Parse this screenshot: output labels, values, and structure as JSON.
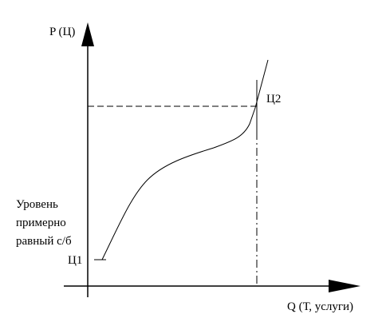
{
  "axes": {
    "y_label": "P (Ц)",
    "x_label": "Q (Т, услуги)"
  },
  "points": {
    "upper": "Ц2",
    "lower": "Ц1"
  },
  "note": {
    "lines": [
      "Уровень",
      "примерно",
      "равный с/б"
    ]
  }
}
